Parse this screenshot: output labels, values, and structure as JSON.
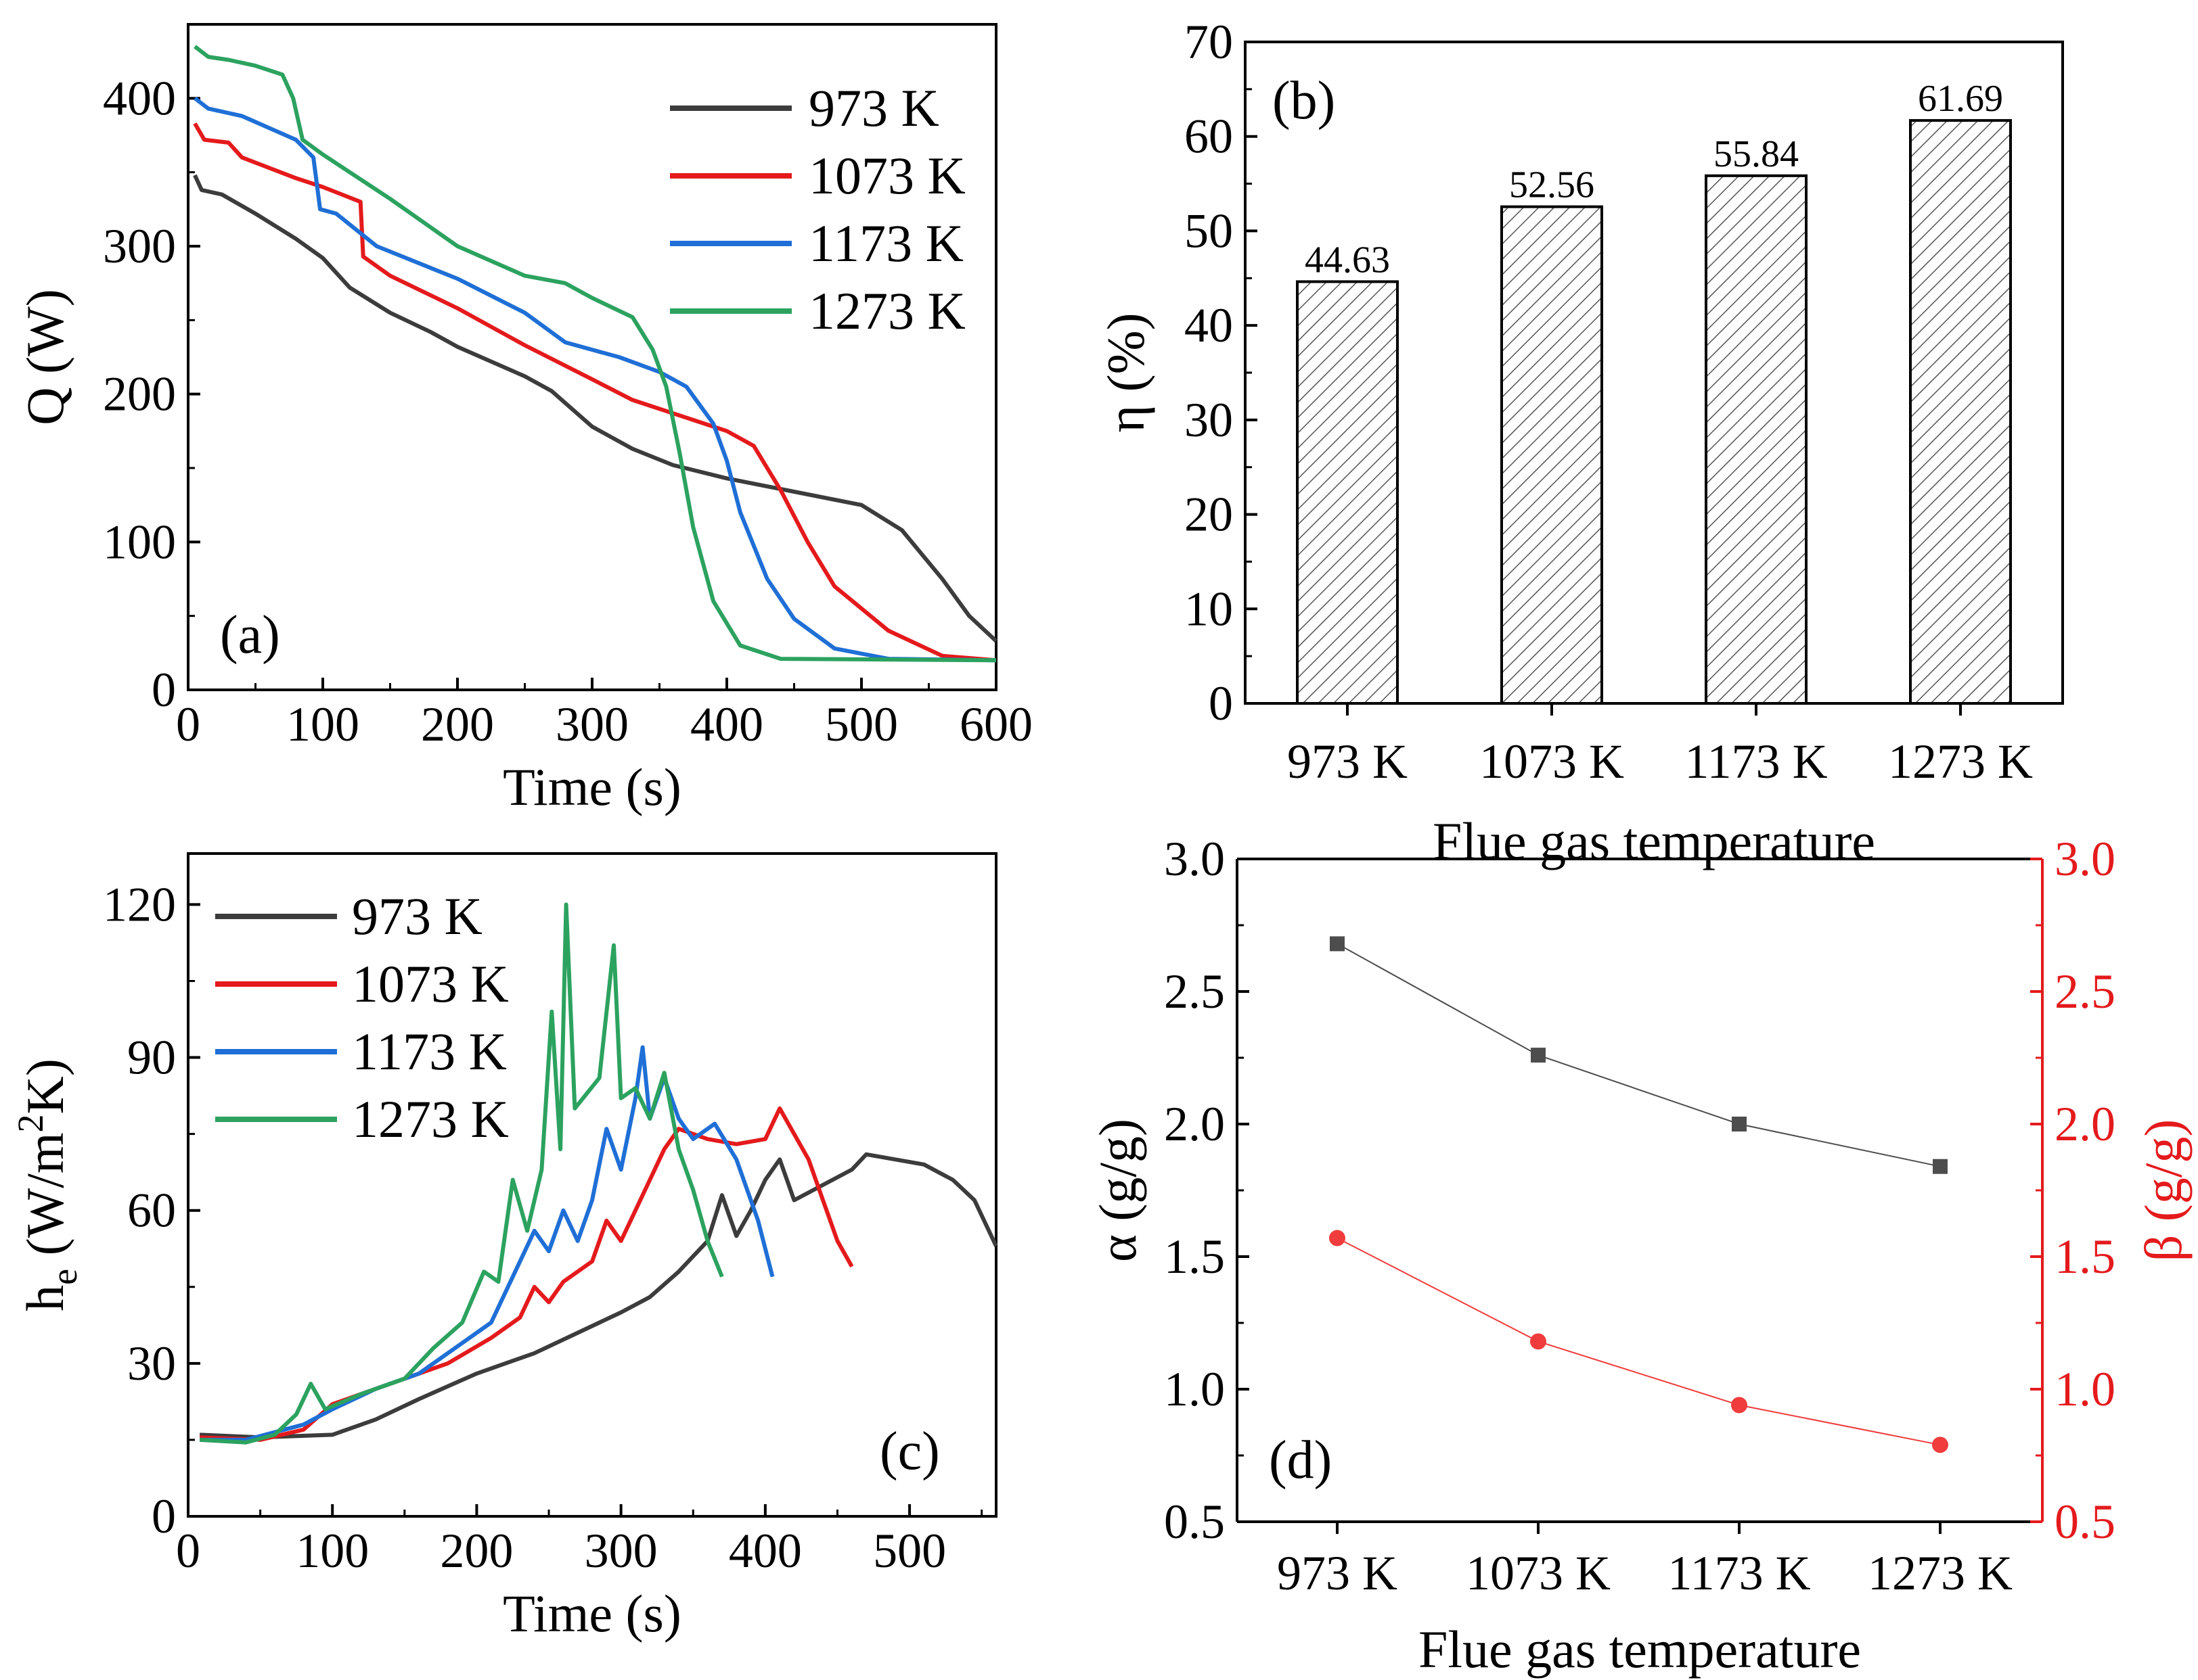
{
  "chart_data": [
    {
      "type": "line",
      "panel_label": "(a)",
      "xlabel": "Time (s)",
      "ylabel": "Q (W)",
      "xlim": [
        0,
        600
      ],
      "ylim": [
        0,
        450
      ],
      "xticks": [
        "0",
        "100",
        "200",
        "300",
        "400",
        "500",
        "600"
      ],
      "yticks": [
        "0",
        "100",
        "200",
        "300",
        "400"
      ],
      "legend_position": "top-right",
      "series": [
        {
          "name": "973 K",
          "color": "#3c3c3c",
          "points": [
            [
              5,
              348
            ],
            [
              10,
              338
            ],
            [
              25,
              335
            ],
            [
              50,
              322
            ],
            [
              80,
              305
            ],
            [
              100,
              292
            ],
            [
              120,
              272
            ],
            [
              150,
              255
            ],
            [
              180,
              242
            ],
            [
              200,
              232
            ],
            [
              250,
              212
            ],
            [
              270,
              202
            ],
            [
              285,
              190
            ],
            [
              300,
              178
            ],
            [
              330,
              163
            ],
            [
              360,
              152
            ],
            [
              400,
              143
            ],
            [
              450,
              134
            ],
            [
              500,
              125
            ],
            [
              530,
              108
            ],
            [
              560,
              75
            ],
            [
              580,
              50
            ],
            [
              600,
              33
            ]
          ]
        },
        {
          "name": "1073 K",
          "color": "#e41a1c",
          "points": [
            [
              5,
              383
            ],
            [
              12,
              372
            ],
            [
              30,
              370
            ],
            [
              40,
              360
            ],
            [
              80,
              346
            ],
            [
              100,
              340
            ],
            [
              128,
              330
            ],
            [
              130,
              293
            ],
            [
              150,
              280
            ],
            [
              200,
              258
            ],
            [
              250,
              233
            ],
            [
              300,
              210
            ],
            [
              330,
              196
            ],
            [
              350,
              190
            ],
            [
              400,
              175
            ],
            [
              420,
              165
            ],
            [
              440,
              135
            ],
            [
              460,
              100
            ],
            [
              480,
              70
            ],
            [
              520,
              40
            ],
            [
              560,
              23
            ],
            [
              600,
              20
            ]
          ]
        },
        {
          "name": "1173 K",
          "color": "#1f6fd6",
          "points": [
            [
              5,
              400
            ],
            [
              15,
              393
            ],
            [
              40,
              388
            ],
            [
              80,
              372
            ],
            [
              93,
              360
            ],
            [
              98,
              325
            ],
            [
              110,
              322
            ],
            [
              140,
              300
            ],
            [
              200,
              278
            ],
            [
              250,
              255
            ],
            [
              280,
              235
            ],
            [
              300,
              230
            ],
            [
              320,
              225
            ],
            [
              350,
              215
            ],
            [
              370,
              205
            ],
            [
              390,
              180
            ],
            [
              400,
              155
            ],
            [
              410,
              120
            ],
            [
              430,
              75
            ],
            [
              450,
              48
            ],
            [
              480,
              28
            ],
            [
              520,
              21
            ],
            [
              600,
              20
            ]
          ]
        },
        {
          "name": "1273 K",
          "color": "#2ca25f",
          "points": [
            [
              5,
              435
            ],
            [
              15,
              428
            ],
            [
              30,
              426
            ],
            [
              50,
              422
            ],
            [
              70,
              416
            ],
            [
              78,
              400
            ],
            [
              85,
              372
            ],
            [
              100,
              362
            ],
            [
              150,
              332
            ],
            [
              200,
              300
            ],
            [
              250,
              280
            ],
            [
              280,
              275
            ],
            [
              300,
              265
            ],
            [
              330,
              252
            ],
            [
              345,
              230
            ],
            [
              355,
              205
            ],
            [
              365,
              160
            ],
            [
              375,
              110
            ],
            [
              390,
              60
            ],
            [
              410,
              30
            ],
            [
              440,
              21
            ],
            [
              600,
              20
            ]
          ]
        }
      ]
    },
    {
      "type": "bar",
      "panel_label": "(b)",
      "xlabel": "Flue gas temperature",
      "ylabel": "η (%)",
      "ylim": [
        0,
        70
      ],
      "yticks": [
        "0",
        "10",
        "20",
        "30",
        "40",
        "50",
        "60",
        "70"
      ],
      "categories": [
        "973 K",
        "1073 K",
        "1173 K",
        "1273 K"
      ],
      "values": [
        44.63,
        52.56,
        55.84,
        61.69
      ],
      "value_labels": [
        "44.63",
        "52.56",
        "55.84",
        "61.69"
      ],
      "bar_pattern": "diagonal-hatch"
    },
    {
      "type": "line",
      "panel_label": "(c)",
      "xlabel": "Time (s)",
      "ylabel_main": "h",
      "ylabel_sub": "e",
      "ylabel_unit_a": " (W/m",
      "ylabel_sup": "2",
      "ylabel_unit_b": "K)",
      "xlim": [
        0,
        560
      ],
      "ylim": [
        0,
        130
      ],
      "xticks": [
        "0",
        "100",
        "200",
        "300",
        "400",
        "500"
      ],
      "yticks": [
        "0",
        "30",
        "60",
        "90",
        "120"
      ],
      "legend_position": "top-left",
      "series": [
        {
          "name": "973 K",
          "color": "#3c3c3c",
          "points": [
            [
              8,
              16
            ],
            [
              50,
              15.5
            ],
            [
              100,
              16
            ],
            [
              130,
              19
            ],
            [
              160,
              23
            ],
            [
              200,
              28
            ],
            [
              240,
              32
            ],
            [
              270,
              36
            ],
            [
              300,
              40
            ],
            [
              320,
              43
            ],
            [
              340,
              48
            ],
            [
              360,
              54
            ],
            [
              370,
              63
            ],
            [
              380,
              55
            ],
            [
              390,
              60
            ],
            [
              400,
              66
            ],
            [
              410,
              70
            ],
            [
              420,
              62
            ],
            [
              440,
              65
            ],
            [
              460,
              68
            ],
            [
              470,
              71
            ],
            [
              490,
              70
            ],
            [
              510,
              69
            ],
            [
              530,
              66
            ],
            [
              545,
              62
            ],
            [
              560,
              53
            ]
          ]
        },
        {
          "name": "1073 K",
          "color": "#e41a1c",
          "points": [
            [
              8,
              15.5
            ],
            [
              50,
              15
            ],
            [
              80,
              17
            ],
            [
              100,
              22
            ],
            [
              120,
              24
            ],
            [
              150,
              27
            ],
            [
              180,
              30
            ],
            [
              210,
              35
            ],
            [
              230,
              39
            ],
            [
              240,
              45
            ],
            [
              250,
              42
            ],
            [
              260,
              46
            ],
            [
              280,
              50
            ],
            [
              290,
              58
            ],
            [
              300,
              54
            ],
            [
              310,
              60
            ],
            [
              320,
              66
            ],
            [
              330,
              72
            ],
            [
              340,
              76
            ],
            [
              360,
              74
            ],
            [
              380,
              73
            ],
            [
              400,
              74
            ],
            [
              410,
              80
            ],
            [
              420,
              75
            ],
            [
              430,
              70
            ],
            [
              440,
              62
            ],
            [
              450,
              54
            ],
            [
              460,
              49
            ]
          ]
        },
        {
          "name": "1173 K",
          "color": "#1f6fd6",
          "points": [
            [
              8,
              15
            ],
            [
              40,
              15
            ],
            [
              80,
              18
            ],
            [
              100,
              21
            ],
            [
              130,
              25
            ],
            [
              160,
              28
            ],
            [
              190,
              34
            ],
            [
              210,
              38
            ],
            [
              220,
              44
            ],
            [
              230,
              50
            ],
            [
              240,
              56
            ],
            [
              250,
              52
            ],
            [
              260,
              60
            ],
            [
              270,
              54
            ],
            [
              280,
              62
            ],
            [
              290,
              76
            ],
            [
              300,
              68
            ],
            [
              310,
              82
            ],
            [
              315,
              92
            ],
            [
              320,
              78
            ],
            [
              330,
              86
            ],
            [
              340,
              78
            ],
            [
              350,
              74
            ],
            [
              365,
              77
            ],
            [
              380,
              70
            ],
            [
              395,
              58
            ],
            [
              405,
              47
            ]
          ]
        },
        {
          "name": "1273 K",
          "color": "#2ca25f",
          "points": [
            [
              8,
              15
            ],
            [
              40,
              14.5
            ],
            [
              60,
              16
            ],
            [
              75,
              20
            ],
            [
              85,
              26
            ],
            [
              95,
              21
            ],
            [
              120,
              24
            ],
            [
              150,
              27
            ],
            [
              170,
              33
            ],
            [
              190,
              38
            ],
            [
              205,
              48
            ],
            [
              215,
              46
            ],
            [
              225,
              66
            ],
            [
              235,
              56
            ],
            [
              245,
              68
            ],
            [
              252,
              99
            ],
            [
              258,
              72
            ],
            [
              262,
              120
            ],
            [
              268,
              80
            ],
            [
              285,
              86
            ],
            [
              295,
              112
            ],
            [
              300,
              82
            ],
            [
              310,
              84
            ],
            [
              320,
              78
            ],
            [
              330,
              87
            ],
            [
              340,
              72
            ],
            [
              350,
              64
            ],
            [
              360,
              54
            ],
            [
              370,
              47
            ]
          ]
        }
      ]
    },
    {
      "type": "scatter",
      "panel_label": "(d)",
      "xlabel": "Flue gas temperature",
      "ylabel_left": "α (g/g)",
      "ylabel_right": "β (g/g)",
      "ylim_left": [
        0.5,
        3.0
      ],
      "ylim_right": [
        0.5,
        3.0
      ],
      "yticks": [
        "0.5",
        "1.0",
        "1.5",
        "2.0",
        "2.5",
        "3.0"
      ],
      "categories": [
        "973 K",
        "1073 K",
        "1173 K",
        "1273 K"
      ],
      "series": [
        {
          "name": "α",
          "axis": "left",
          "color": "#4d4d4d",
          "marker": "square",
          "values": [
            2.68,
            2.26,
            2.0,
            1.84
          ]
        },
        {
          "name": "β",
          "axis": "right",
          "color": "#f03c3c",
          "marker": "circle",
          "values": [
            1.57,
            1.18,
            0.94,
            0.79
          ]
        }
      ]
    }
  ]
}
